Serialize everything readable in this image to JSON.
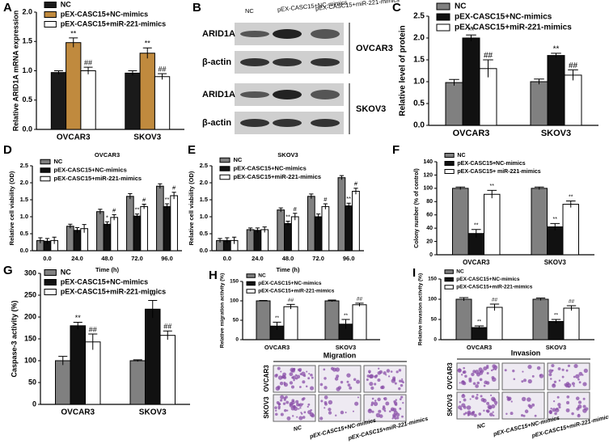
{
  "chart_data": [
    {
      "type": "bar",
      "panel": "A",
      "ylabel": "Relative ARID1A mRNA expression",
      "categories": [
        "OVCAR3",
        "SKOV3"
      ],
      "ylim": [
        0,
        2.0
      ],
      "yticks": [
        {
          "value": 0,
          "label": "0.0"
        },
        {
          "value": 0.5,
          "label": "0.5"
        },
        {
          "value": 1.0,
          "label": "1.0"
        },
        {
          "value": 1.5,
          "label": "1.5"
        },
        {
          "value": 2.0,
          "label": "2.0"
        }
      ],
      "series": [
        {
          "name": "NC",
          "color": "#1a1a1a",
          "values": [
            0.97,
            0.96
          ],
          "errors": [
            0.03,
            0.04
          ]
        },
        {
          "name": "pEX-CASC15+NC-mimics",
          "color": "#c08a3e",
          "values": [
            1.48,
            1.3
          ],
          "errors": [
            0.08,
            0.09
          ],
          "marks": [
            "**",
            "**"
          ]
        },
        {
          "name": "pEX-CASC15+miR-221-mimics",
          "color": "#ffffff",
          "values": [
            1.0,
            0.9
          ],
          "errors": [
            0.06,
            0.05
          ],
          "marks": [
            "##",
            "##"
          ]
        }
      ]
    },
    {
      "type": "bar",
      "panel": "C",
      "ylabel": "Relative level of protein",
      "categories": [
        "OVCAR3",
        "SKOV3"
      ],
      "ylim": [
        0,
        2.5
      ],
      "yticks": [
        {
          "value": 0,
          "label": "0.0"
        },
        {
          "value": 0.5,
          "label": "0.5"
        },
        {
          "value": 1.0,
          "label": "1.0"
        },
        {
          "value": 1.5,
          "label": "1.5"
        },
        {
          "value": 2.0,
          "label": "2.0"
        },
        {
          "value": 2.5,
          "label": "2.5"
        }
      ],
      "series": [
        {
          "name": "NC",
          "color": "#808080",
          "values": [
            0.98,
            1.0
          ],
          "errors": [
            0.07,
            0.06
          ]
        },
        {
          "name": "pEX-CASC15+NC-mimics",
          "color": "#111111",
          "values": [
            2.0,
            1.6
          ],
          "errors": [
            0.07,
            0.05
          ],
          "marks": [
            "**",
            "**"
          ]
        },
        {
          "name": "pEX-CASC15+miR-221-mimics",
          "color": "#ffffff",
          "values": [
            1.3,
            1.15
          ],
          "errors": [
            0.2,
            0.12
          ],
          "marks": [
            "##",
            "##"
          ]
        }
      ]
    },
    {
      "type": "bar",
      "panel": "D",
      "title": "OVCAR3",
      "ylabel": "Relative cell viability (OD)",
      "xlabel": "Time (h)",
      "categories": [
        "0.0",
        "24.0",
        "48.0",
        "72.0",
        "96.0"
      ],
      "ylim": [
        0,
        2.5
      ],
      "yticks": [
        {
          "value": 0,
          "label": "0.0"
        },
        {
          "value": 0.5,
          "label": "0.5"
        },
        {
          "value": 1.0,
          "label": "1.0"
        },
        {
          "value": 1.5,
          "label": "1.5"
        },
        {
          "value": 2.0,
          "label": "2.0"
        },
        {
          "value": 2.5,
          "label": "2.5"
        }
      ],
      "series": [
        {
          "name": "NC",
          "color": "#808080",
          "values": [
            0.3,
            0.72,
            1.15,
            1.6,
            1.9
          ],
          "errors": [
            0.08,
            0.06,
            0.07,
            0.08,
            0.07
          ]
        },
        {
          "name": "pEX-CASC15+NC-mimics",
          "color": "#111111",
          "values": [
            0.28,
            0.6,
            0.78,
            1.02,
            1.3
          ],
          "errors": [
            0.08,
            0.08,
            0.07,
            0.06,
            0.08
          ],
          "marks": [
            null,
            null,
            "*",
            "**",
            "**"
          ]
        },
        {
          "name": "pEX-CASC15+miR-221-mimics",
          "color": "#ffffff",
          "values": [
            0.3,
            0.65,
            0.98,
            1.3,
            1.62
          ],
          "errors": [
            0.1,
            0.12,
            0.08,
            0.07,
            0.1
          ],
          "marks": [
            null,
            null,
            "#",
            "#",
            "#"
          ]
        }
      ]
    },
    {
      "type": "bar",
      "panel": "E",
      "title": "SKOV3",
      "ylabel": "Relative cell viability (OD)",
      "xlabel": "Time (h)",
      "categories": [
        "0.0",
        "24.0",
        "48.0",
        "72.0",
        "96.0"
      ],
      "ylim": [
        0,
        2.5
      ],
      "yticks": [
        {
          "value": 0,
          "label": "0.0"
        },
        {
          "value": 0.5,
          "label": "0.5"
        },
        {
          "value": 1.0,
          "label": "1.0"
        },
        {
          "value": 1.5,
          "label": "1.5"
        },
        {
          "value": 2.0,
          "label": "2.0"
        },
        {
          "value": 2.5,
          "label": "2.5"
        }
      ],
      "series": [
        {
          "name": "NC",
          "color": "#808080",
          "values": [
            0.3,
            0.62,
            1.2,
            1.6,
            2.15
          ],
          "errors": [
            0.06,
            0.05,
            0.06,
            0.07,
            0.06
          ]
        },
        {
          "name": "pEX-CASC15+NC-mimics",
          "color": "#111111",
          "values": [
            0.3,
            0.6,
            0.8,
            1.0,
            1.32
          ],
          "errors": [
            0.08,
            0.07,
            0.07,
            0.08,
            0.08
          ],
          "marks": [
            null,
            null,
            "**",
            null,
            "**"
          ]
        },
        {
          "name": "pEX-CASC15+miR-221-mimics",
          "color": "#ffffff",
          "values": [
            0.3,
            0.62,
            1.0,
            1.3,
            1.75
          ],
          "errors": [
            0.1,
            0.08,
            0.1,
            0.08,
            0.09
          ],
          "marks": [
            null,
            null,
            "#",
            "#",
            "#"
          ]
        }
      ]
    },
    {
      "type": "bar",
      "panel": "F",
      "ylabel": "Colony number (% of control)",
      "categories": [
        "OVCAR3",
        "SKOV3"
      ],
      "ylim": [
        0,
        140
      ],
      "yticks": [
        0,
        20,
        40,
        60,
        80,
        100,
        120,
        140
      ],
      "series": [
        {
          "name": "NC",
          "color": "#808080",
          "values": [
            100,
            100
          ],
          "errors": [
            2,
            2
          ]
        },
        {
          "name": "pEX-CASC15+NC-mimics",
          "color": "#111111",
          "values": [
            32,
            42
          ],
          "errors": [
            6,
            5
          ],
          "marks": [
            "**",
            "**"
          ]
        },
        {
          "name": "pEX-CASC15+ miR-221-mimics",
          "color": "#ffffff",
          "values": [
            91,
            76
          ],
          "errors": [
            6,
            5
          ],
          "marks": [
            "**",
            "**"
          ]
        }
      ]
    },
    {
      "type": "bar",
      "panel": "G",
      "ylabel": "Caspase-3 activity (%)",
      "categories": [
        "OVCAR3",
        "SKOV3"
      ],
      "ylim": [
        0,
        300
      ],
      "yticks": [
        0,
        50,
        100,
        150,
        200,
        250,
        300
      ],
      "series": [
        {
          "name": "NC",
          "color": "#808080",
          "values": [
            100,
            100
          ],
          "errors": [
            10,
            2
          ]
        },
        {
          "name": "pEX-CASC15+NC-mimics",
          "color": "#111111",
          "values": [
            180,
            218
          ],
          "errors": [
            8,
            20
          ],
          "marks": [
            "**",
            "**"
          ]
        },
        {
          "name": "pEX-CASC15+miR-221-mimics",
          "color": "#ffffff",
          "values": [
            143,
            158
          ],
          "errors": [
            18,
            10
          ],
          "marks": [
            "##",
            "##"
          ]
        }
      ]
    },
    {
      "type": "bar",
      "panel": "H",
      "ylabel": "Relative migration activity (%)",
      "categories": [
        "OVCAR3",
        "SKOV3"
      ],
      "ylim": [
        0,
        150
      ],
      "yticks": [
        0,
        50,
        100,
        150
      ],
      "series": [
        {
          "name": "NC",
          "color": "#808080",
          "values": [
            100,
            100
          ],
          "errors": [
            1,
            2
          ]
        },
        {
          "name": "pEX-CASC15+NC-mimics",
          "color": "#111111",
          "values": [
            35,
            40
          ],
          "errors": [
            10,
            12
          ],
          "marks": [
            "**",
            "**"
          ]
        },
        {
          "name": "pEX-CASC15+miR-221-mimics",
          "color": "#ffffff",
          "values": [
            85,
            90
          ],
          "errors": [
            6,
            4
          ],
          "marks": [
            "##",
            "##"
          ]
        }
      ]
    },
    {
      "type": "bar",
      "panel": "I",
      "ylabel": "Relative invasion activity (%)",
      "categories": [
        "OVCAR3",
        "SKOV3"
      ],
      "ylim": [
        0,
        150
      ],
      "yticks": [
        0,
        50,
        100,
        150
      ],
      "series": [
        {
          "name": "NC",
          "color": "#808080",
          "values": [
            100,
            100
          ],
          "errors": [
            4,
            3
          ]
        },
        {
          "name": "pEX-CASC15+NC-mimics",
          "color": "#111111",
          "values": [
            30,
            45
          ],
          "errors": [
            4,
            5
          ],
          "marks": [
            "**",
            "**"
          ]
        },
        {
          "name": "pEX-CASC15+miR-221-mimics",
          "color": "#ffffff",
          "values": [
            80,
            78
          ],
          "errors": [
            8,
            6
          ],
          "marks": [
            "##",
            "##"
          ]
        }
      ]
    }
  ],
  "blot": {
    "panel": "B",
    "lanes": [
      "NC",
      "pEX-CASC15+NC-mimics",
      "pEX-CASC15+miR-221-mimics"
    ],
    "groups": [
      {
        "rows": [
          "ARID1A",
          "β-actin"
        ],
        "cell": "OVCAR3"
      },
      {
        "rows": [
          "ARID1A",
          "β-actin"
        ],
        "cell": "SKOV3"
      }
    ]
  },
  "migration": {
    "title": "Migration",
    "rows": [
      "OVCAR3",
      "SKOV3"
    ],
    "columns": [
      "NC",
      "pEX-CASC15+NC-mimics",
      "pEX-CASC15+miR-221-mimics"
    ]
  },
  "invasion": {
    "title": "Invasion",
    "rows": [
      "OVCAR3",
      "SKOV3"
    ],
    "columns": [
      "NC",
      "pEX-CASC15+NC-mimics",
      "pEX-CASC15+miR-221-mimics"
    ]
  }
}
